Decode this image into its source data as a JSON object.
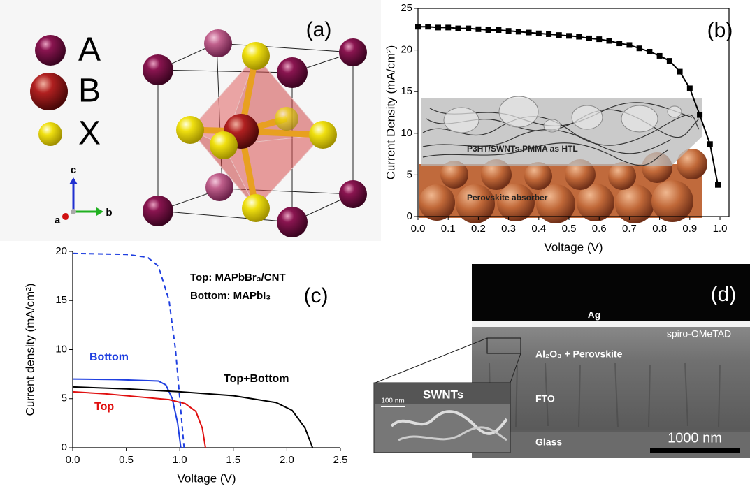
{
  "panel_a": {
    "label": "(a)",
    "legend": [
      "A",
      "B",
      "X"
    ],
    "axes": [
      "c",
      "a",
      "b"
    ]
  },
  "chart_data": [
    {
      "type": "line",
      "panel_label": "(b)",
      "x_label": "Voltage (V)",
      "y_label": "Current Density (mA/cm²)",
      "xlim": [
        0,
        1.03
      ],
      "xticks": [
        {
          "value": 0,
          "label": "0.0"
        },
        0.1,
        0.2,
        0.3,
        0.4,
        0.5,
        0.6,
        0.7,
        0.8,
        0.9,
        {
          "value": 1,
          "label": "1.0"
        }
      ],
      "ylim": [
        0,
        25
      ],
      "yticks": [
        0,
        5,
        10,
        15,
        20,
        25
      ],
      "frame": true,
      "marker": "square",
      "inset_labels": [
        "P3HT/SWNTs-PMMA as HTL",
        "Perovskite absorber"
      ],
      "series": [
        {
          "color": "#000000",
          "x": [
            0,
            0.033,
            0.067,
            0.1,
            0.133,
            0.167,
            0.2,
            0.233,
            0.267,
            0.3,
            0.333,
            0.367,
            0.4,
            0.433,
            0.467,
            0.5,
            0.533,
            0.567,
            0.6,
            0.633,
            0.667,
            0.7,
            0.733,
            0.767,
            0.8,
            0.833,
            0.867,
            0.9,
            0.933,
            0.967,
            0.993
          ],
          "values": [
            22.8,
            22.8,
            22.7,
            22.7,
            22.6,
            22.6,
            22.5,
            22.4,
            22.4,
            22.3,
            22.2,
            22.1,
            22.0,
            21.9,
            21.8,
            21.7,
            21.6,
            21.4,
            21.3,
            21.1,
            20.8,
            20.6,
            20.2,
            19.8,
            19.3,
            18.7,
            17.4,
            15.4,
            12.2,
            8.7,
            3.8
          ]
        }
      ]
    },
    {
      "type": "line",
      "panel_label": "(c)",
      "x_label": "Voltage (V)",
      "y_label": "Current density (mA/cm²)",
      "xlim": [
        0,
        2.5
      ],
      "xticks": [
        {
          "value": 0,
          "label": "0.0"
        },
        0.5,
        {
          "value": 1,
          "label": "1.0"
        },
        1.5,
        {
          "value": 2,
          "label": "2.0"
        },
        2.5
      ],
      "ylim": [
        0,
        20
      ],
      "yticks": [
        0,
        5,
        10,
        15,
        20
      ],
      "frame": false,
      "annotations": [
        "Top: MAPbBr₃/CNT",
        "Bottom: MAPbI₃"
      ],
      "series": [
        {
          "name": "Bottom",
          "color": "#1f3fe0",
          "x": [
            0,
            0.4,
            0.8,
            0.87,
            0.93,
            0.98,
            1.01
          ],
          "values": [
            7.0,
            6.95,
            6.8,
            6.4,
            5.0,
            2.5,
            0
          ]
        },
        {
          "name": "Top",
          "color": "#e01010",
          "x": [
            0,
            0.3,
            0.6,
            0.9,
            1.05,
            1.15,
            1.21,
            1.24
          ],
          "values": [
            5.7,
            5.5,
            5.2,
            4.9,
            4.5,
            3.7,
            2.0,
            0
          ]
        },
        {
          "name": "Top+Bottom",
          "color": "#000000",
          "x": [
            0,
            0.5,
            1.0,
            1.5,
            1.9,
            2.05,
            2.17,
            2.24
          ],
          "values": [
            6.2,
            6.0,
            5.7,
            5.3,
            4.6,
            3.8,
            2.0,
            0
          ]
        },
        {
          "color": "#1f3fe0",
          "dashed": true,
          "x": [
            0,
            0.5,
            0.7,
            0.8,
            0.9,
            0.96,
            1.0,
            1.04
          ],
          "values": [
            19.8,
            19.7,
            19.4,
            18.5,
            15,
            10,
            5,
            0
          ]
        }
      ]
    }
  ],
  "panel_d": {
    "label": "(d)",
    "layers": [
      "Ag",
      "spiro-OMeTAD",
      "Al₂O₃ + Perovskite",
      "FTO",
      "Glass"
    ],
    "scale_bar": "1000 nm",
    "inset_label": "SWNTs",
    "inset_scale": "100 nm"
  }
}
